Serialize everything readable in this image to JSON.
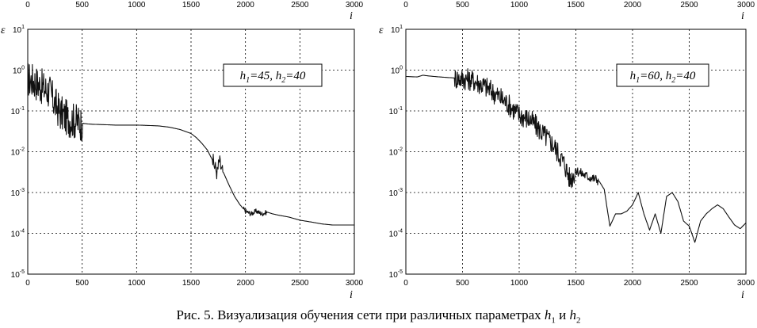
{
  "caption": {
    "text": "Рис. 5. Визуализация обучения сети при различных параметрах",
    "sym1": "h",
    "sub1": "1",
    "conj": "и",
    "sym2": "h",
    "sub2": "2"
  },
  "chart_data": [
    {
      "type": "line",
      "xlabel": "i",
      "ylabel": "ε",
      "xlim": [
        0,
        3000
      ],
      "ylim": [
        1e-05,
        10
      ],
      "yscale": "log",
      "grid": true,
      "xticks": [
        "0",
        "500",
        "1000",
        "1500",
        "2000",
        "2500",
        "3000"
      ],
      "top_ticks": [
        "0",
        "500",
        "1000",
        "1500",
        "2000",
        "2500",
        "3000"
      ],
      "yticks": [
        "10-5",
        "10-4",
        "10-3",
        "10-2",
        "10-1",
        "100",
        "101"
      ],
      "annotation": {
        "h1": "h",
        "sub1": "1",
        "v1": "=45, ",
        "h2": "h",
        "sub2": "2",
        "v2": "=40"
      },
      "series": [
        {
          "x": [
            0,
            50,
            100,
            150,
            200,
            250,
            300,
            350,
            400,
            450,
            500,
            550,
            600,
            700,
            800,
            900,
            1000,
            1100,
            1200,
            1300,
            1400,
            1500,
            1550,
            1600,
            1650,
            1700,
            1740,
            1760,
            1780,
            1800,
            1850,
            1900,
            1950,
            2000,
            2050,
            2100,
            2150,
            2200,
            2250,
            2300,
            2400,
            2500,
            2600,
            2700,
            2800,
            2900,
            3000
          ],
          "y": [
            0.6,
            0.55,
            0.45,
            0.35,
            0.3,
            0.15,
            0.09,
            0.07,
            0.06,
            0.055,
            0.05,
            0.048,
            0.047,
            0.046,
            0.045,
            0.045,
            0.045,
            0.044,
            0.043,
            0.04,
            0.035,
            0.028,
            0.022,
            0.016,
            0.011,
            0.006,
            0.003,
            0.006,
            0.0035,
            0.003,
            0.0015,
            0.0008,
            0.0005,
            0.00035,
            0.0003,
            0.00035,
            0.0003,
            0.00033,
            0.0003,
            0.00028,
            0.00025,
            0.00021,
            0.00019,
            0.00017,
            0.00016,
            0.00016,
            0.00016
          ],
          "noise": [
            [
              0,
              500,
              0.9
            ],
            [
              1700,
              1790,
              0.4
            ],
            [
              1980,
              2200,
              0.12
            ]
          ]
        }
      ]
    },
    {
      "type": "line",
      "xlabel": "i",
      "ylabel": "ε",
      "xlim": [
        0,
        3000
      ],
      "ylim": [
        1e-05,
        10
      ],
      "yscale": "log",
      "grid": true,
      "xticks": [
        "0",
        "500",
        "1000",
        "1500",
        "2000",
        "2500",
        "3000"
      ],
      "top_ticks": [
        "0",
        "500",
        "1000",
        "1500",
        "2000",
        "2500",
        "3000"
      ],
      "yticks": [
        "10-5",
        "10-4",
        "10-3",
        "10-2",
        "10-1",
        "100",
        "101"
      ],
      "annotation": {
        "h1": "h",
        "sub1": "1",
        "v1": "=60, ",
        "h2": "h",
        "sub2": "2",
        "v2": "=40"
      },
      "series": [
        {
          "x": [
            0,
            100,
            150,
            200,
            300,
            400,
            500,
            550,
            600,
            700,
            800,
            900,
            1000,
            1100,
            1200,
            1300,
            1400,
            1450,
            1500,
            1600,
            1700,
            1750,
            1800,
            1850,
            1900,
            1950,
            2000,
            2050,
            2100,
            2150,
            2200,
            2250,
            2300,
            2350,
            2400,
            2450,
            2500,
            2550,
            2600,
            2650,
            2700,
            2750,
            2800,
            2850,
            2900,
            2950,
            3000
          ],
          "y": [
            0.7,
            0.68,
            0.75,
            0.72,
            0.68,
            0.65,
            0.62,
            0.6,
            0.55,
            0.4,
            0.25,
            0.15,
            0.08,
            0.06,
            0.03,
            0.015,
            0.005,
            0.002,
            0.0035,
            0.0025,
            0.002,
            0.0012,
            0.00015,
            0.0003,
            0.0003,
            0.00035,
            0.0005,
            0.001,
            0.0003,
            0.00012,
            0.0003,
            0.0001,
            0.0008,
            0.001,
            0.0006,
            0.0002,
            0.00015,
            6e-05,
            0.0002,
            0.0003,
            0.0004,
            0.0005,
            0.0004,
            0.00025,
            0.00016,
            0.00013,
            0.00018
          ],
          "noise": [
            [
              430,
              1500,
              0.55
            ],
            [
              1500,
              1700,
              0.25
            ]
          ]
        }
      ]
    }
  ]
}
